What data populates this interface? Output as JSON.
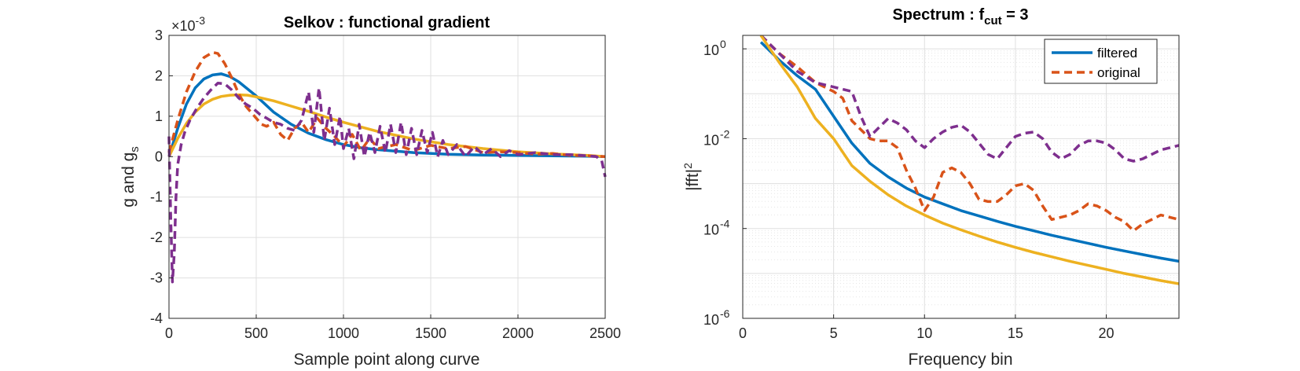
{
  "chart_data": [
    {
      "type": "line",
      "title": "Selkov : functional gradient",
      "xlabel": "Sample point along curve",
      "ylabel_main": "g and g",
      "ylabel_sub": "s",
      "y_exponent_base": "×10",
      "y_exponent_power": "-3",
      "xlim": [
        0,
        2500
      ],
      "ylim": [
        -4,
        3
      ],
      "xticks": [
        0,
        500,
        1000,
        1500,
        2000,
        2500
      ],
      "yticks": [
        -4,
        -3,
        -2,
        -1,
        0,
        1,
        2,
        3
      ],
      "grid": true,
      "series": [
        {
          "style": "solid",
          "color": "#0072BD",
          "x": [
            0,
            50,
            100,
            150,
            200,
            250,
            300,
            350,
            400,
            500,
            600,
            700,
            800,
            900,
            1000,
            1100,
            1200,
            1400,
            1600,
            1800,
            2000,
            2200,
            2400,
            2500
          ],
          "y": [
            0.0,
            0.7,
            1.3,
            1.7,
            1.92,
            2.02,
            2.05,
            1.98,
            1.85,
            1.5,
            1.1,
            0.8,
            0.58,
            0.42,
            0.3,
            0.22,
            0.17,
            0.1,
            0.06,
            0.04,
            0.03,
            0.02,
            0.01,
            0.0
          ]
        },
        {
          "style": "solid",
          "color": "#EDB120",
          "x": [
            0,
            50,
            100,
            150,
            200,
            250,
            300,
            350,
            400,
            450,
            500,
            600,
            700,
            800,
            900,
            1000,
            1200,
            1400,
            1600,
            1800,
            2000,
            2200,
            2400,
            2500
          ],
          "y": [
            0.0,
            0.45,
            0.82,
            1.1,
            1.3,
            1.42,
            1.49,
            1.52,
            1.53,
            1.52,
            1.48,
            1.38,
            1.25,
            1.12,
            0.98,
            0.85,
            0.62,
            0.44,
            0.3,
            0.2,
            0.12,
            0.07,
            0.03,
            0.0
          ]
        },
        {
          "style": "dashed",
          "color": "#D95319",
          "x": [
            0,
            50,
            100,
            150,
            200,
            250,
            280,
            320,
            360,
            400,
            440,
            480,
            500,
            530,
            560,
            600,
            640,
            680,
            720,
            760,
            800,
            850,
            900,
            950,
            1000,
            1050,
            1100,
            1150,
            1200,
            1300,
            1400,
            1500,
            1600,
            1700,
            1800,
            1900,
            2000,
            2100,
            2200,
            2300,
            2400,
            2500
          ],
          "y": [
            0.1,
            0.9,
            1.6,
            2.1,
            2.45,
            2.58,
            2.55,
            2.3,
            1.95,
            1.55,
            1.25,
            1.05,
            0.95,
            0.8,
            0.75,
            0.85,
            0.55,
            0.4,
            0.7,
            0.85,
            0.6,
            0.95,
            0.7,
            0.5,
            0.25,
            0.55,
            0.15,
            0.45,
            0.2,
            0.3,
            0.15,
            0.28,
            0.2,
            0.25,
            0.1,
            0.12,
            0.1,
            0.06,
            0.08,
            0.03,
            0.02,
            0.0
          ]
        },
        {
          "style": "dashed",
          "color": "#7E2F8E",
          "x": [
            0,
            10,
            20,
            30,
            40,
            50,
            70,
            90,
            120,
            160,
            200,
            240,
            280,
            320,
            360,
            400,
            440,
            480,
            520,
            560,
            600,
            640,
            680,
            720,
            760,
            800,
            830,
            860,
            890,
            920,
            950,
            980,
            1000,
            1030,
            1060,
            1090,
            1120,
            1150,
            1180,
            1210,
            1240,
            1270,
            1300,
            1330,
            1360,
            1390,
            1420,
            1450,
            1480,
            1510,
            1540,
            1570,
            1600,
            1650,
            1700,
            1750,
            1800,
            1850,
            1900,
            1950,
            2000,
            2100,
            2200,
            2300,
            2400,
            2450,
            2480,
            2500
          ],
          "y": [
            0.5,
            -1.5,
            -3.1,
            -2.4,
            -1.0,
            -0.2,
            0.3,
            0.6,
            0.9,
            1.2,
            1.45,
            1.65,
            1.82,
            1.8,
            1.65,
            1.45,
            1.3,
            1.2,
            1.05,
            0.95,
            0.85,
            0.8,
            0.7,
            0.65,
            0.9,
            1.6,
            0.6,
            1.7,
            0.4,
            1.2,
            0.3,
            1.0,
            0.2,
            0.7,
            -0.05,
            0.8,
            0.0,
            0.6,
            0.1,
            0.75,
            0.1,
            0.8,
            0.1,
            0.85,
            0.05,
            0.7,
            0.05,
            0.65,
            0.1,
            0.6,
            0.0,
            0.4,
            0.05,
            0.3,
            0.0,
            0.25,
            0.05,
            0.2,
            0.0,
            0.15,
            0.05,
            0.1,
            0.05,
            0.05,
            0.02,
            0.0,
            -0.1,
            -0.5
          ]
        }
      ]
    },
    {
      "type": "line",
      "title_main": "Spectrum : f",
      "title_sub": "cut",
      "title_tail": " = 3",
      "xlabel": "Frequency bin",
      "ylabel_main": "|fft|",
      "ylabel_sup": "2",
      "xlim": [
        0,
        24
      ],
      "ylim_log10": [
        -6,
        0.3
      ],
      "y_scale": "log",
      "xticks": [
        0,
        5,
        10,
        15,
        20
      ],
      "ytick_bases": [
        "10",
        "10",
        "10",
        "10"
      ],
      "ytick_exponents": [
        "0",
        "-2",
        "-4",
        "-6"
      ],
      "ytick_values_log10": [
        0,
        -2,
        -4,
        -6
      ],
      "grid": true,
      "minor_grid": true,
      "legend": {
        "position": "top-right",
        "entries": [
          "filtered",
          "original"
        ]
      },
      "series": [
        {
          "name": "filtered",
          "style": "solid",
          "color": "#0072BD",
          "x": [
            1,
            2,
            3,
            4,
            5,
            6,
            7,
            8,
            9,
            10,
            11,
            12,
            13,
            14,
            15,
            16,
            17,
            18,
            19,
            20,
            21,
            22,
            23,
            24
          ],
          "y_log10": [
            0.15,
            -0.25,
            -0.6,
            -0.9,
            -1.5,
            -2.1,
            -2.55,
            -2.85,
            -3.1,
            -3.3,
            -3.45,
            -3.6,
            -3.72,
            -3.84,
            -3.95,
            -4.05,
            -4.15,
            -4.24,
            -4.33,
            -4.42,
            -4.5,
            -4.58,
            -4.66,
            -4.73
          ]
        },
        {
          "name": "original",
          "style": "dashed",
          "color": "#D95319",
          "x": [
            1,
            2,
            3,
            4,
            4.5,
            5,
            5.5,
            6,
            7,
            7.5,
            8,
            8.5,
            9,
            9.5,
            10,
            10.5,
            11,
            11.5,
            12,
            12.5,
            13,
            13.5,
            14,
            14.5,
            15,
            15.5,
            16,
            16.5,
            17,
            17.5,
            18,
            18.5,
            19,
            19.5,
            20,
            20.5,
            21,
            21.5,
            22,
            22.5,
            23,
            23.5,
            24
          ],
          "y_log10": [
            0.3,
            -0.1,
            -0.4,
            -0.75,
            -0.85,
            -0.95,
            -1.1,
            -1.6,
            -2.0,
            -2.05,
            -2.05,
            -2.2,
            -2.7,
            -3.1,
            -3.6,
            -3.3,
            -2.75,
            -2.65,
            -2.75,
            -3.0,
            -3.35,
            -3.4,
            -3.4,
            -3.25,
            -3.05,
            -3.0,
            -3.15,
            -3.5,
            -3.8,
            -3.75,
            -3.7,
            -3.6,
            -3.45,
            -3.5,
            -3.6,
            -3.75,
            -3.85,
            -4.05,
            -3.9,
            -3.8,
            -3.7,
            -3.75,
            -3.8
          ]
        },
        {
          "style": "dashed",
          "color": "#7E2F8E",
          "x": [
            1,
            2,
            3,
            4,
            5,
            6,
            6.5,
            7,
            7.5,
            8,
            8.5,
            9,
            9.5,
            10,
            10.5,
            11,
            11.5,
            12,
            12.5,
            13,
            13.5,
            14,
            14.5,
            15,
            15.5,
            16,
            16.5,
            17,
            17.5,
            18,
            18.5,
            19,
            19.5,
            20,
            20.5,
            21,
            21.5,
            22,
            22.5,
            23,
            23.5,
            24
          ],
          "y_log10": [
            0.3,
            -0.1,
            -0.5,
            -0.75,
            -0.85,
            -0.95,
            -1.5,
            -1.95,
            -1.75,
            -1.55,
            -1.65,
            -1.8,
            -2.05,
            -2.2,
            -2.0,
            -1.85,
            -1.75,
            -1.7,
            -1.85,
            -2.1,
            -2.35,
            -2.45,
            -2.2,
            -1.95,
            -1.88,
            -1.85,
            -2.0,
            -2.3,
            -2.45,
            -2.35,
            -2.15,
            -2.05,
            -2.05,
            -2.1,
            -2.25,
            -2.45,
            -2.5,
            -2.45,
            -2.35,
            -2.25,
            -2.2,
            -2.15
          ]
        },
        {
          "style": "solid",
          "color": "#EDB120",
          "x": [
            1,
            2,
            3,
            4,
            5,
            6,
            7,
            8,
            9,
            10,
            11,
            12,
            13,
            14,
            15,
            16,
            17,
            18,
            19,
            20,
            21,
            22,
            23,
            24
          ],
          "y_log10": [
            0.3,
            -0.3,
            -0.85,
            -1.55,
            -2.0,
            -2.6,
            -2.95,
            -3.25,
            -3.5,
            -3.7,
            -3.88,
            -4.03,
            -4.17,
            -4.3,
            -4.42,
            -4.53,
            -4.63,
            -4.73,
            -4.82,
            -4.91,
            -5.0,
            -5.08,
            -5.16,
            -5.23
          ]
        }
      ]
    }
  ]
}
